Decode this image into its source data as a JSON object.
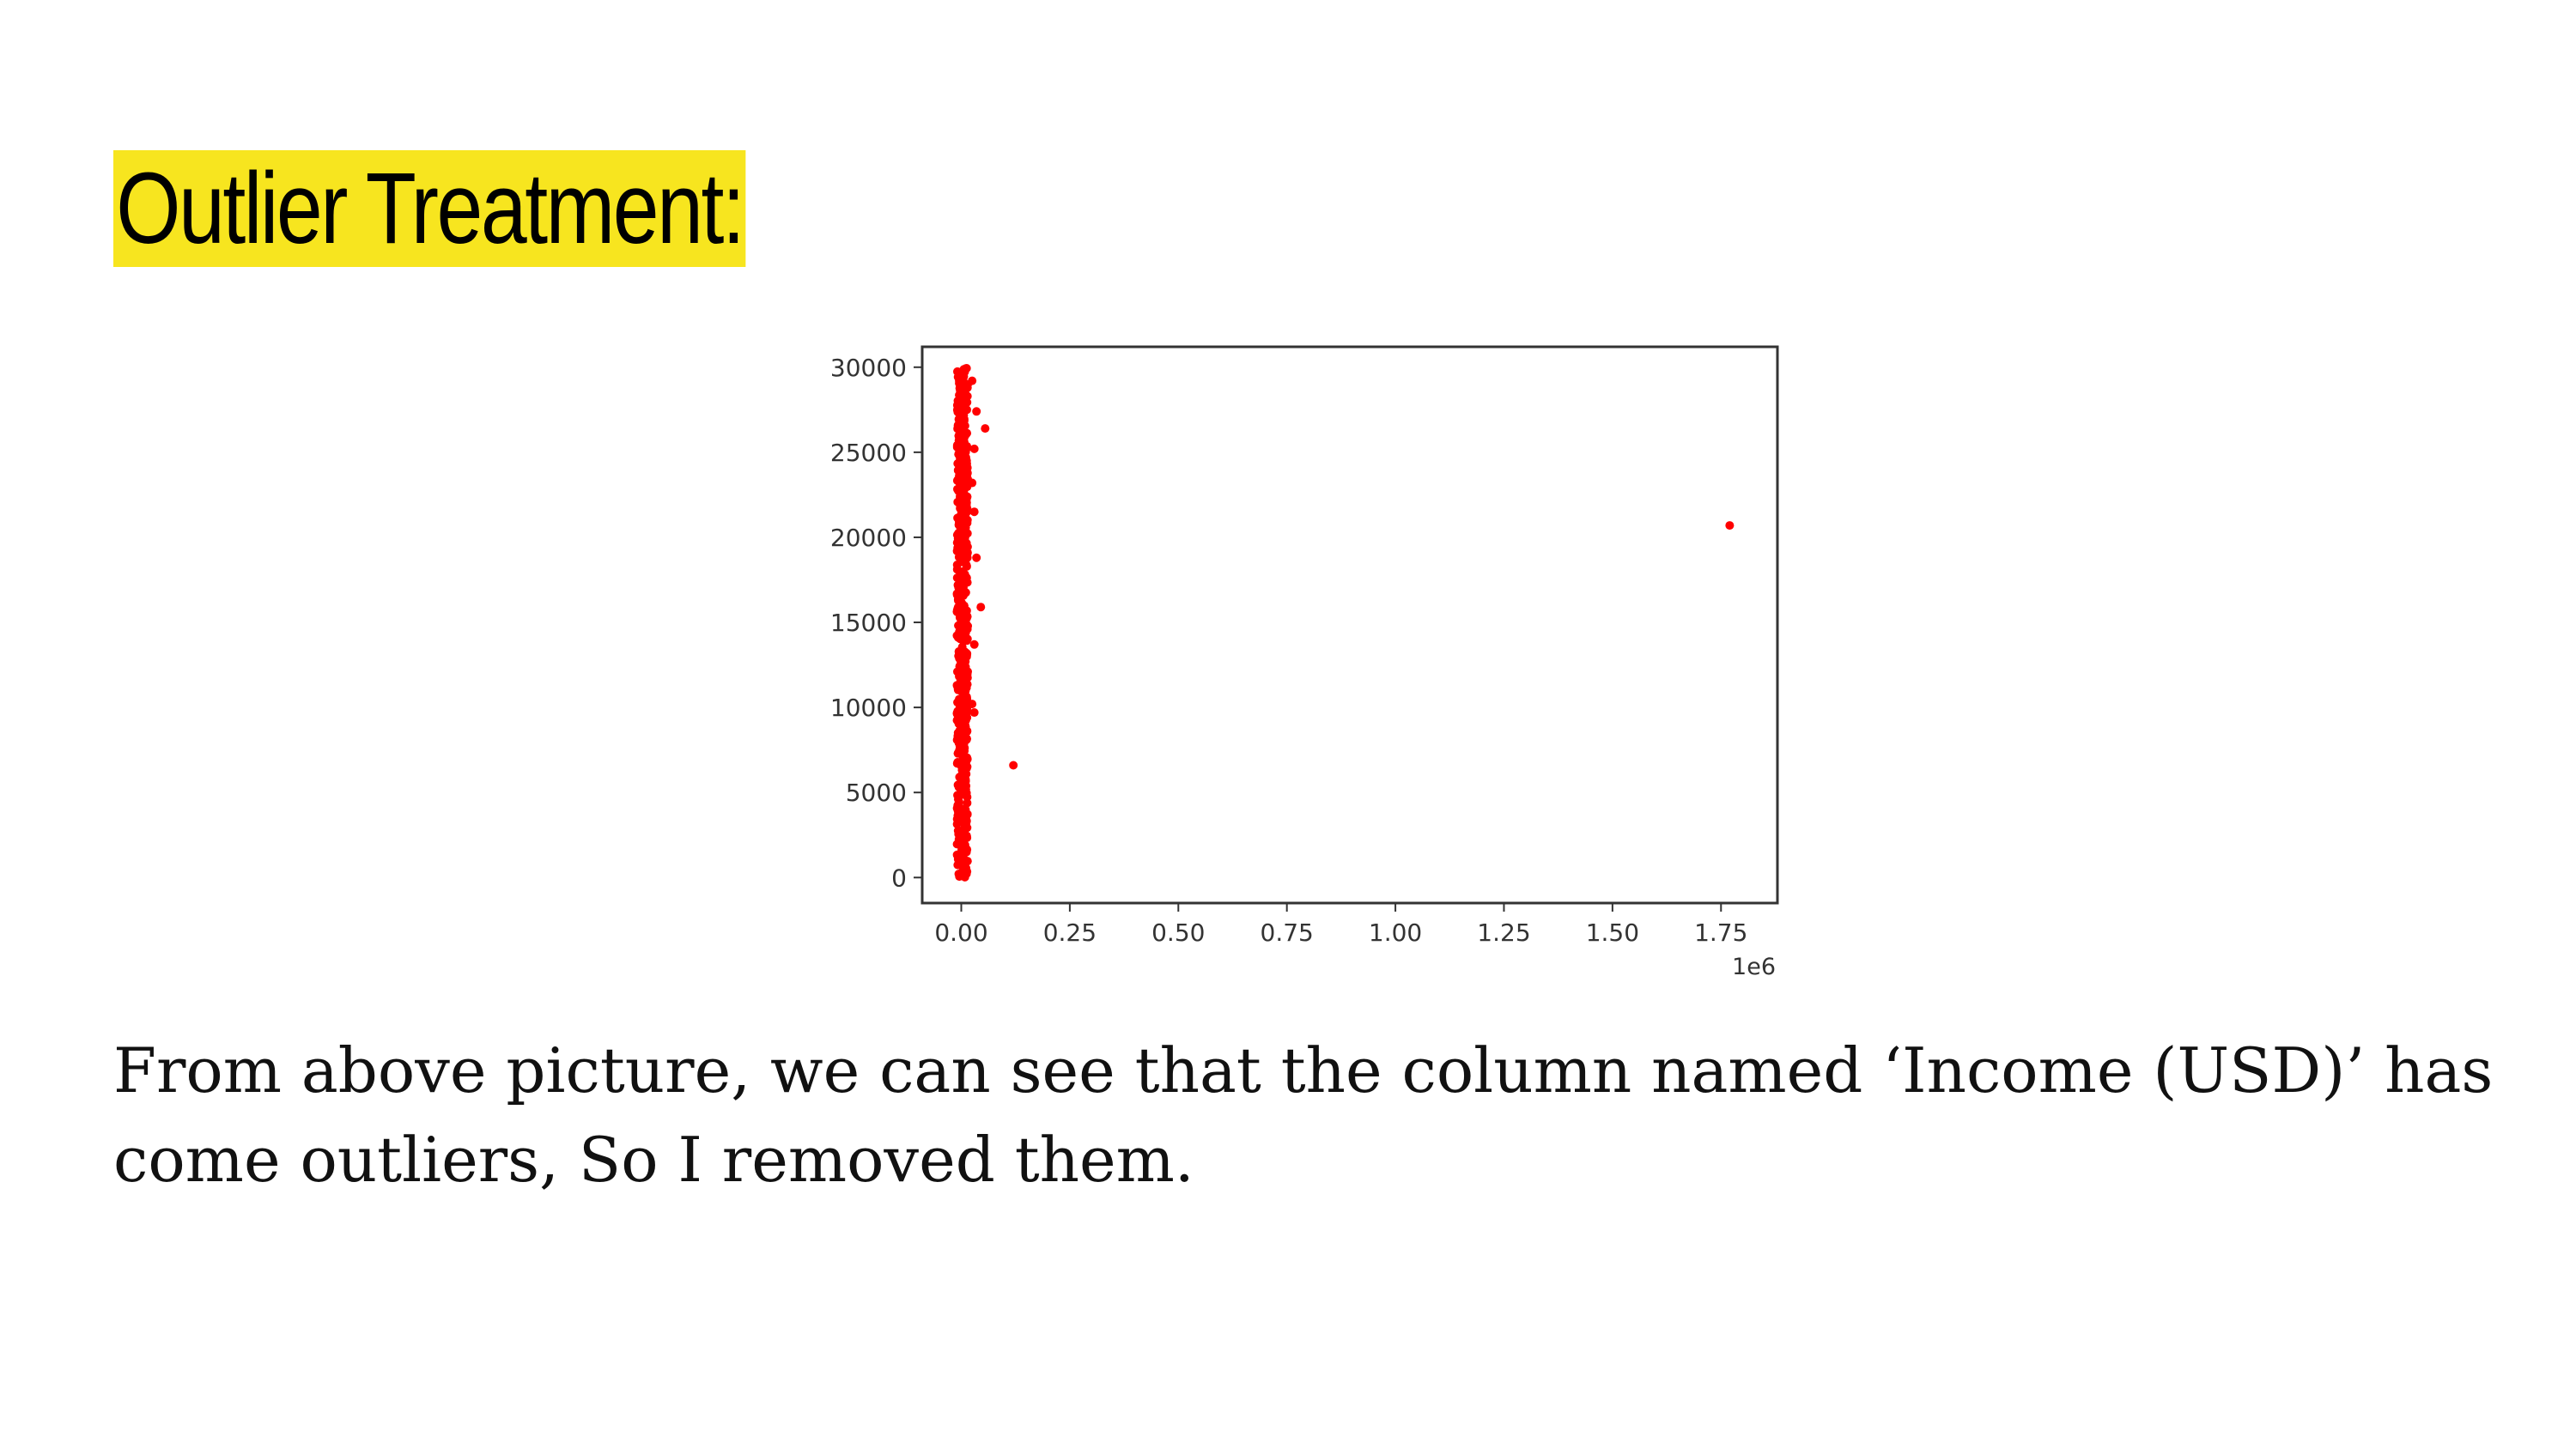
{
  "slide": {
    "title": "Outlier Treatment:",
    "body": "From above picture, we can see that the column named ‘Income (USD)’ has come outliers, So I removed them.",
    "highlight_color": "#f7e51f"
  },
  "chart_data": {
    "type": "scatter",
    "title": "",
    "xlabel": "",
    "ylabel": "",
    "x_offset_label": "1e6",
    "xlim": [
      -0.09,
      1.88
    ],
    "ylim": [
      -1500,
      31200
    ],
    "x_ticks": [
      0.0,
      0.25,
      0.5,
      0.75,
      1.0,
      1.25,
      1.5,
      1.75
    ],
    "x_tick_labels": [
      "0.00",
      "0.25",
      "0.50",
      "0.75",
      "1.00",
      "1.25",
      "1.50",
      "1.75"
    ],
    "y_ticks": [
      0,
      5000,
      10000,
      15000,
      20000,
      25000,
      30000
    ],
    "y_tick_labels": [
      "0",
      "5000",
      "10000",
      "15000",
      "20000",
      "25000",
      "30000"
    ],
    "point_color": "#ff0000",
    "dense_cluster": {
      "x_min": -0.01,
      "x_max": 0.015,
      "y_min": 0,
      "y_max": 30000,
      "count": 600
    },
    "points": [
      {
        "x": 0.025,
        "y": 29200
      },
      {
        "x": 0.035,
        "y": 27400
      },
      {
        "x": 0.055,
        "y": 26400
      },
      {
        "x": 0.03,
        "y": 25200
      },
      {
        "x": 0.025,
        "y": 23200
      },
      {
        "x": 0.03,
        "y": 21500
      },
      {
        "x": 0.035,
        "y": 18800
      },
      {
        "x": 0.045,
        "y": 15900
      },
      {
        "x": 0.03,
        "y": 13700
      },
      {
        "x": 0.025,
        "y": 10200
      },
      {
        "x": 0.03,
        "y": 9700
      },
      {
        "x": 0.12,
        "y": 6600
      },
      {
        "x": 1.77,
        "y": 20700
      }
    ]
  }
}
